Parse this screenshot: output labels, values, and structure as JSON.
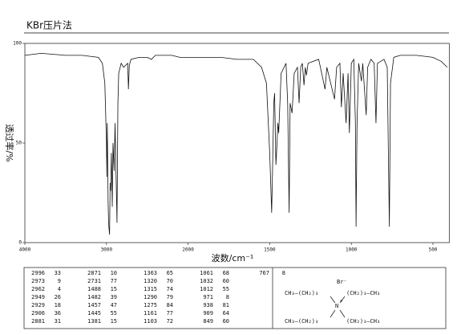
{
  "chart_data": {
    "type": "line",
    "title": "KBr压片法",
    "x_label": "波数/cm⁻¹",
    "y_label": "透过率/%",
    "color": "#111111",
    "xlim": [
      4000,
      400
    ],
    "xticks": [
      4000,
      3000,
      2000,
      1500,
      1000,
      500
    ],
    "ylim": [
      0,
      100
    ],
    "yticks": [
      0,
      50,
      100
    ],
    "x": [
      4000,
      3800,
      3500,
      3300,
      3100,
      3050,
      3020,
      3000,
      2996,
      2990,
      2980,
      2973,
      2962,
      2955,
      2949,
      2940,
      2929,
      2920,
      2906,
      2895,
      2881,
      2871,
      2860,
      2850,
      2820,
      2790,
      2740,
      2731,
      2720,
      2700,
      2600,
      2500,
      2450,
      2400,
      2300,
      2200,
      2100,
      2000,
      1900,
      1800,
      1700,
      1600,
      1550,
      1520,
      1500,
      1488,
      1482,
      1475,
      1470,
      1462,
      1457,
      1450,
      1445,
      1430,
      1400,
      1390,
      1381,
      1375,
      1363,
      1350,
      1330,
      1320,
      1310,
      1300,
      1290,
      1282,
      1275,
      1265,
      1200,
      1161,
      1150,
      1103,
      1090,
      1070,
      1061,
      1050,
      1032,
      1020,
      1012,
      1000,
      985,
      975,
      971,
      965,
      955,
      938,
      930,
      909,
      900,
      880,
      860,
      849,
      840,
      800,
      780,
      767,
      760,
      740,
      700,
      600,
      500,
      450,
      412
    ],
    "values": [
      94,
      95,
      94,
      94,
      93,
      90,
      80,
      50,
      33,
      60,
      20,
      9,
      4,
      30,
      26,
      45,
      18,
      50,
      36,
      60,
      31,
      10,
      70,
      85,
      90,
      88,
      90,
      77,
      89,
      92,
      93,
      93,
      92,
      94,
      94,
      94,
      93,
      93,
      93,
      93,
      92,
      92,
      88,
      80,
      45,
      15,
      39,
      70,
      75,
      39,
      47,
      60,
      55,
      85,
      90,
      70,
      15,
      70,
      65,
      85,
      88,
      70,
      88,
      90,
      79,
      88,
      84,
      90,
      92,
      77,
      88,
      72,
      88,
      90,
      68,
      85,
      60,
      85,
      55,
      90,
      92,
      60,
      8,
      60,
      90,
      81,
      90,
      64,
      88,
      92,
      90,
      60,
      90,
      92,
      88,
      8,
      80,
      93,
      94,
      94,
      93,
      91,
      88
    ]
  },
  "peak_table": [
    [
      2996,
      33
    ],
    [
      2973,
      9
    ],
    [
      2962,
      4
    ],
    [
      2949,
      26
    ],
    [
      2929,
      18
    ],
    [
      2906,
      36
    ],
    [
      2881,
      31
    ],
    [
      2871,
      10
    ],
    [
      2731,
      77
    ],
    [
      1488,
      15
    ],
    [
      1482,
      39
    ],
    [
      1457,
      47
    ],
    [
      1445,
      55
    ],
    [
      1381,
      15
    ],
    [
      1363,
      65
    ],
    [
      1320,
      70
    ],
    [
      1315,
      74
    ],
    [
      1290,
      79
    ],
    [
      1275,
      84
    ],
    [
      1161,
      77
    ],
    [
      1103,
      72
    ],
    [
      1061,
      68
    ],
    [
      1032,
      60
    ],
    [
      1012,
      55
    ],
    [
      971,
      8
    ],
    [
      938,
      81
    ],
    [
      909,
      64
    ],
    [
      849,
      60
    ],
    [
      767,
      8
    ]
  ],
  "structure": {
    "anion": "Br⁻",
    "top_left": "CH₃—(CH₂)₃",
    "top_right": "(CH₂)₃—CH₃",
    "center": "N",
    "charge": "+",
    "bottom_left": "CH₃—(CH₂)₃",
    "bottom_right": "(CH₂)₃—CH₃"
  }
}
